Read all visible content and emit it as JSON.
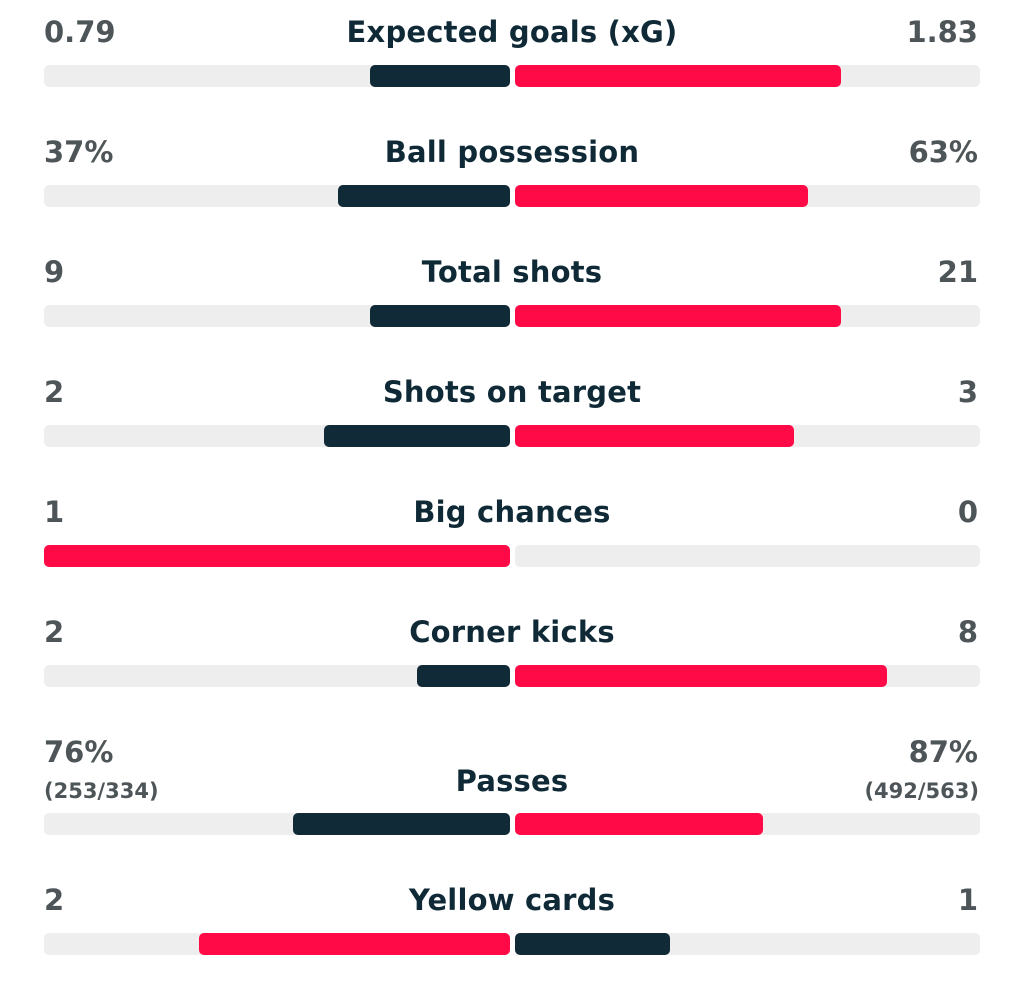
{
  "colors": {
    "leader": "#ff0a46",
    "trailer": "#102a38",
    "track": "#eeeeef",
    "value_text": "#4e5558",
    "label_text": "#0f2a36"
  },
  "stats": [
    {
      "label": "Expected goals (xG)",
      "home": "0.79",
      "away": "1.83",
      "home_share": 0.3,
      "away_share": 0.7
    },
    {
      "label": "Ball possession",
      "home": "37%",
      "away": "63%",
      "home_share": 0.37,
      "away_share": 0.63
    },
    {
      "label": "Total shots",
      "home": "9",
      "away": "21",
      "home_share": 0.3,
      "away_share": 0.7
    },
    {
      "label": "Shots on target",
      "home": "2",
      "away": "3",
      "home_share": 0.4,
      "away_share": 0.6
    },
    {
      "label": "Big chances",
      "home": "1",
      "away": "0",
      "home_share": 1.0,
      "away_share": 0.0
    },
    {
      "label": "Corner kicks",
      "home": "2",
      "away": "8",
      "home_share": 0.2,
      "away_share": 0.8
    },
    {
      "label": "Passes",
      "home": "76%",
      "away": "87%",
      "home_detail": "(253/334)",
      "away_detail": "(492/563)",
      "home_share": 0.466,
      "away_share": 0.534
    },
    {
      "label": "Yellow cards",
      "home": "2",
      "away": "1",
      "home_share": 0.667,
      "away_share": 0.333
    }
  ]
}
